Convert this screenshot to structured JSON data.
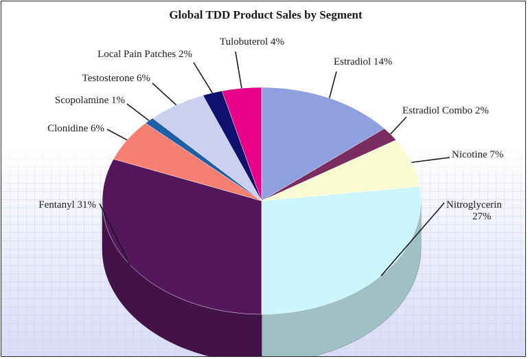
{
  "chart_data": {
    "type": "pie",
    "title": "Global TDD Product Sales by Segment",
    "style": "3d",
    "slices": [
      {
        "label": "Estradiol 14%",
        "value": 14,
        "color": "#8f9fe0"
      },
      {
        "label": "Estradiol Combo 2%",
        "value": 2,
        "color": "#7a2d5e"
      },
      {
        "label": "Nicotine 7%",
        "value": 7,
        "color": "#fafad2"
      },
      {
        "label": "Nitroglycerin",
        "label_line2": "27%",
        "value": 27,
        "color": "#ccf6fb"
      },
      {
        "label": "Fentanyl 31%",
        "value": 31,
        "color": "#55175c"
      },
      {
        "label": "Clonidine 6%",
        "value": 6,
        "color": "#f77f72"
      },
      {
        "label": "Scopolamine 1%",
        "value": 1,
        "color": "#1f5fa8"
      },
      {
        "label": "Testosterone 6%",
        "value": 6,
        "color": "#cbd0f0"
      },
      {
        "label": "Local Pain Patches 2%",
        "value": 2,
        "color": "#10106e"
      },
      {
        "label": "Tulobuterol 4%",
        "value": 4,
        "color": "#e8008a"
      }
    ]
  }
}
